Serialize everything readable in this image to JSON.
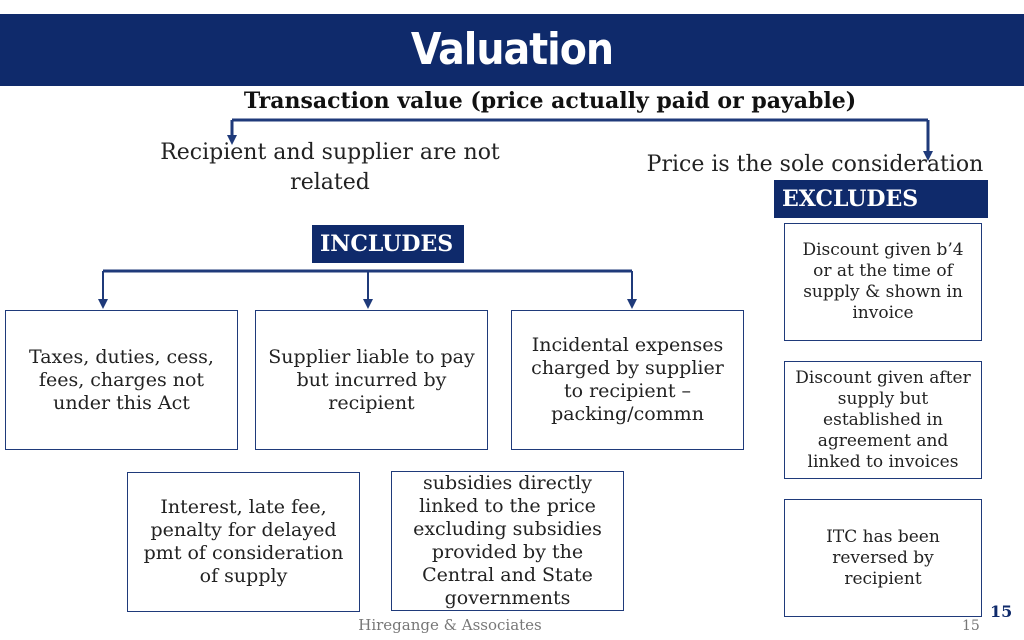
{
  "slide": {
    "title": "Valuation",
    "subtitle": "Transaction value (price actually paid or payable)",
    "left_condition": "Recipient and supplier are not related",
    "right_condition": "Price is the sole consideration",
    "excludes_label": "EXCLUDES",
    "includes_label": "INCLUDES",
    "includes": [
      "Taxes, duties, cess, fees, charges not under this Act",
      "Supplier liable to pay but incurred by recipient",
      "Incidental expenses charged by supplier to recipient – packing/commn",
      "Interest, late fee, penalty for delayed pmt of consideration of supply",
      "subsidies directly linked to the price excluding subsidies provided by the Central and State governments"
    ],
    "excludes": [
      "Discount given b’4 or at the time of supply & shown in invoice",
      "Discount given after supply but established in agreement and linked to invoices",
      "ITC has been reversed by recipient"
    ],
    "footer": "Hiregange & Associates",
    "page_number_large": "15",
    "page_number_small": "15"
  }
}
